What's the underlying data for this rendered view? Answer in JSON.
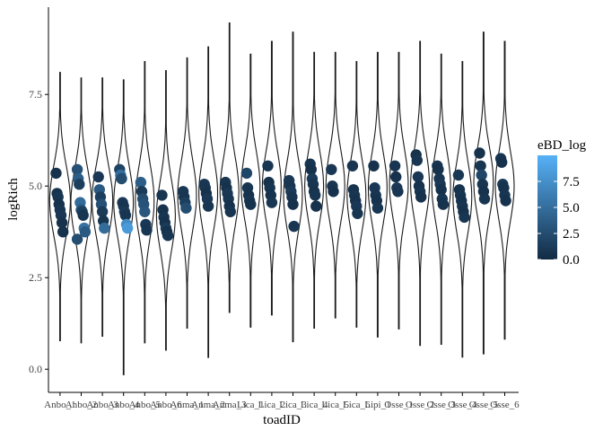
{
  "chart_data": {
    "type": "violin",
    "xlabel": "toadID",
    "ylabel": "logRich",
    "ylim": [
      -0.6,
      10.05
    ],
    "yticks": [
      0.0,
      2.5,
      5.0,
      7.5
    ],
    "ytick_labels": [
      "0.0",
      "2.5",
      "5.0",
      "7.5"
    ],
    "grid": false,
    "legend": {
      "title": "eBD_log",
      "position": "right",
      "range": [
        0,
        10
      ],
      "ticks": [
        0.0,
        2.5,
        5.0,
        7.5
      ],
      "tick_labels": [
        "0.0",
        "2.5",
        "5.0",
        "7.5"
      ],
      "color_low": "#132B43",
      "color_high": "#56B1F7"
    },
    "categories": [
      "Anbo_1",
      "Anbo_2",
      "Anbo_3",
      "Anbo_4",
      "Anbo_5",
      "Anbo_6",
      "Anma_1",
      "Anma_2",
      "Anma_3",
      "Lica_1",
      "Lica_2",
      "Lica_3",
      "Lica_4",
      "Lica_5",
      "Lica_6",
      "Lipi_1",
      "Osse_1",
      "Osse_2",
      "Osse_3",
      "Osse_4",
      "Osse_5",
      "Osse_6"
    ],
    "violins": [
      {
        "min": 0.78,
        "max": 8.1,
        "center": 4.6,
        "width": 0.55
      },
      {
        "min": 0.72,
        "max": 7.95,
        "center": 4.55,
        "width": 0.55
      },
      {
        "min": 0.9,
        "max": 7.95,
        "center": 4.6,
        "width": 0.55
      },
      {
        "min": -0.15,
        "max": 7.9,
        "center": 4.55,
        "width": 0.52
      },
      {
        "min": 0.72,
        "max": 8.4,
        "center": 4.6,
        "width": 0.5
      },
      {
        "min": 0.52,
        "max": 8.15,
        "center": 4.2,
        "width": 0.5
      },
      {
        "min": 1.12,
        "max": 8.5,
        "center": 4.75,
        "width": 0.5
      },
      {
        "min": 0.32,
        "max": 8.8,
        "center": 4.8,
        "width": 0.5
      },
      {
        "min": 1.55,
        "max": 9.45,
        "center": 4.85,
        "width": 0.5
      },
      {
        "min": 1.15,
        "max": 8.6,
        "center": 5.0,
        "width": 0.5
      },
      {
        "min": 1.48,
        "max": 8.95,
        "center": 5.0,
        "width": 0.5
      },
      {
        "min": 0.75,
        "max": 9.2,
        "center": 4.75,
        "width": 0.5
      },
      {
        "min": 1.12,
        "max": 8.65,
        "center": 5.0,
        "width": 0.5
      },
      {
        "min": 1.4,
        "max": 8.65,
        "center": 5.0,
        "width": 0.5
      },
      {
        "min": 1.15,
        "max": 8.4,
        "center": 4.75,
        "width": 0.5
      },
      {
        "min": 0.88,
        "max": 8.65,
        "center": 4.95,
        "width": 0.5
      },
      {
        "min": 1.1,
        "max": 8.65,
        "center": 5.05,
        "width": 0.5
      },
      {
        "min": 0.65,
        "max": 8.95,
        "center": 5.05,
        "width": 0.5
      },
      {
        "min": 0.68,
        "max": 8.6,
        "center": 5.0,
        "width": 0.5
      },
      {
        "min": 0.33,
        "max": 8.4,
        "center": 4.7,
        "width": 0.5
      },
      {
        "min": 0.42,
        "max": 9.2,
        "center": 5.1,
        "width": 0.52
      },
      {
        "min": 0.82,
        "max": 8.95,
        "center": 5.0,
        "width": 0.5
      }
    ],
    "points": [
      {
        "x": "Anbo_1",
        "y": [
          5.35,
          4.8,
          4.7,
          4.5,
          4.35,
          4.2,
          4.0,
          3.75
        ],
        "c": [
          0.5,
          0.5,
          0.8,
          0.5,
          0.8,
          1.0,
          0.5,
          0.5
        ]
      },
      {
        "x": "Anbo_2",
        "y": [
          5.45,
          5.2,
          5.05,
          4.55,
          4.35,
          4.3,
          4.2,
          3.85,
          3.75,
          3.55
        ],
        "c": [
          2.8,
          3.8,
          1.5,
          4.8,
          3.2,
          1.5,
          0.8,
          5.2,
          3.5,
          2.5
        ]
      },
      {
        "x": "Anbo_3",
        "y": [
          5.25,
          4.9,
          4.7,
          4.5,
          4.3,
          4.05,
          3.85
        ],
        "c": [
          1.0,
          3.5,
          1.5,
          2.8,
          1.2,
          0.8,
          4.8
        ]
      },
      {
        "x": "Anbo_4",
        "y": [
          5.45,
          5.3,
          5.2,
          4.55,
          4.45,
          4.3,
          4.2,
          3.95,
          3.85
        ],
        "c": [
          1.8,
          5.0,
          2.5,
          1.0,
          0.8,
          1.2,
          0.8,
          7.2,
          8.3
        ]
      },
      {
        "x": "Anbo_5",
        "y": [
          5.1,
          4.85,
          4.65,
          4.5,
          4.3,
          3.95,
          3.8
        ],
        "c": [
          3.8,
          1.2,
          2.5,
          3.0,
          3.2,
          1.0,
          0.8
        ]
      },
      {
        "x": "Anbo_6",
        "y": [
          4.75,
          4.35,
          4.15,
          4.0,
          3.85,
          3.75,
          3.65
        ],
        "c": [
          0.8,
          0.5,
          0.8,
          0.5,
          1.2,
          0.5,
          0.8
        ]
      },
      {
        "x": "Anma_1",
        "y": [
          4.85,
          4.7,
          4.55,
          4.4
        ],
        "c": [
          1.0,
          0.8,
          1.5,
          2.5
        ]
      },
      {
        "x": "Anma_2",
        "y": [
          5.05,
          4.95,
          4.8,
          4.65,
          4.45
        ],
        "c": [
          1.0,
          0.8,
          0.5,
          1.0,
          0.8
        ]
      },
      {
        "x": "Anma_3",
        "y": [
          5.1,
          4.95,
          4.8,
          4.65,
          4.45,
          4.3
        ],
        "c": [
          0.8,
          0.5,
          1.0,
          0.8,
          0.5,
          0.8
        ]
      },
      {
        "x": "Lica_1",
        "y": [
          5.35,
          4.95,
          4.75,
          4.6,
          4.5
        ],
        "c": [
          2.0,
          0.8,
          0.5,
          0.8,
          0.5
        ]
      },
      {
        "x": "Lica_2",
        "y": [
          5.55,
          5.1,
          4.95,
          4.75,
          4.55
        ],
        "c": [
          0.8,
          0.5,
          0.8,
          0.5,
          0.8
        ]
      },
      {
        "x": "Lica_3",
        "y": [
          5.15,
          5.0,
          4.85,
          4.7,
          4.5,
          3.9
        ],
        "c": [
          1.0,
          0.8,
          1.2,
          0.8,
          0.5,
          0.8
        ]
      },
      {
        "x": "Lica_4",
        "y": [
          5.6,
          5.45,
          5.2,
          5.05,
          4.85,
          4.75,
          4.45
        ],
        "c": [
          0.8,
          0.5,
          1.2,
          0.8,
          0.5,
          0.8,
          0.5
        ]
      },
      {
        "x": "Lica_5",
        "y": [
          5.45,
          5.0,
          4.85
        ],
        "c": [
          1.0,
          0.8,
          0.5
        ]
      },
      {
        "x": "Lica_6",
        "y": [
          5.55,
          4.9,
          4.75,
          4.6,
          4.45,
          4.25
        ],
        "c": [
          0.8,
          0.5,
          0.8,
          0.5,
          1.0,
          0.8
        ]
      },
      {
        "x": "Lipi_1",
        "y": [
          5.55,
          4.95,
          4.75,
          4.6,
          4.4
        ],
        "c": [
          0.5,
          1.0,
          0.8,
          0.5,
          0.8
        ]
      },
      {
        "x": "Osse_1",
        "y": [
          5.55,
          5.25,
          4.95,
          4.85
        ],
        "c": [
          0.8,
          0.5,
          1.0,
          0.8
        ]
      },
      {
        "x": "Osse_2",
        "y": [
          5.85,
          5.7,
          5.25,
          5.0,
          4.85,
          4.7
        ],
        "c": [
          0.5,
          0.8,
          1.0,
          0.5,
          0.8,
          0.5
        ]
      },
      {
        "x": "Osse_3",
        "y": [
          5.55,
          5.45,
          5.2,
          5.05,
          4.9,
          4.65,
          4.5
        ],
        "c": [
          0.8,
          0.5,
          0.8,
          1.0,
          0.5,
          0.8,
          0.5
        ]
      },
      {
        "x": "Osse_4",
        "y": [
          5.3,
          4.9,
          4.75,
          4.6,
          4.45,
          4.3,
          4.15
        ],
        "c": [
          1.0,
          0.5,
          0.8,
          0.5,
          0.8,
          0.5,
          0.8
        ]
      },
      {
        "x": "Osse_5",
        "y": [
          5.9,
          5.55,
          5.3,
          5.05,
          4.85,
          4.65
        ],
        "c": [
          0.5,
          0.8,
          2.0,
          0.8,
          0.5,
          0.8
        ]
      },
      {
        "x": "Osse_6",
        "y": [
          5.75,
          5.65,
          5.05,
          4.95,
          4.75,
          4.6
        ],
        "c": [
          0.8,
          0.5,
          1.0,
          0.5,
          0.8,
          0.5
        ]
      }
    ]
  }
}
